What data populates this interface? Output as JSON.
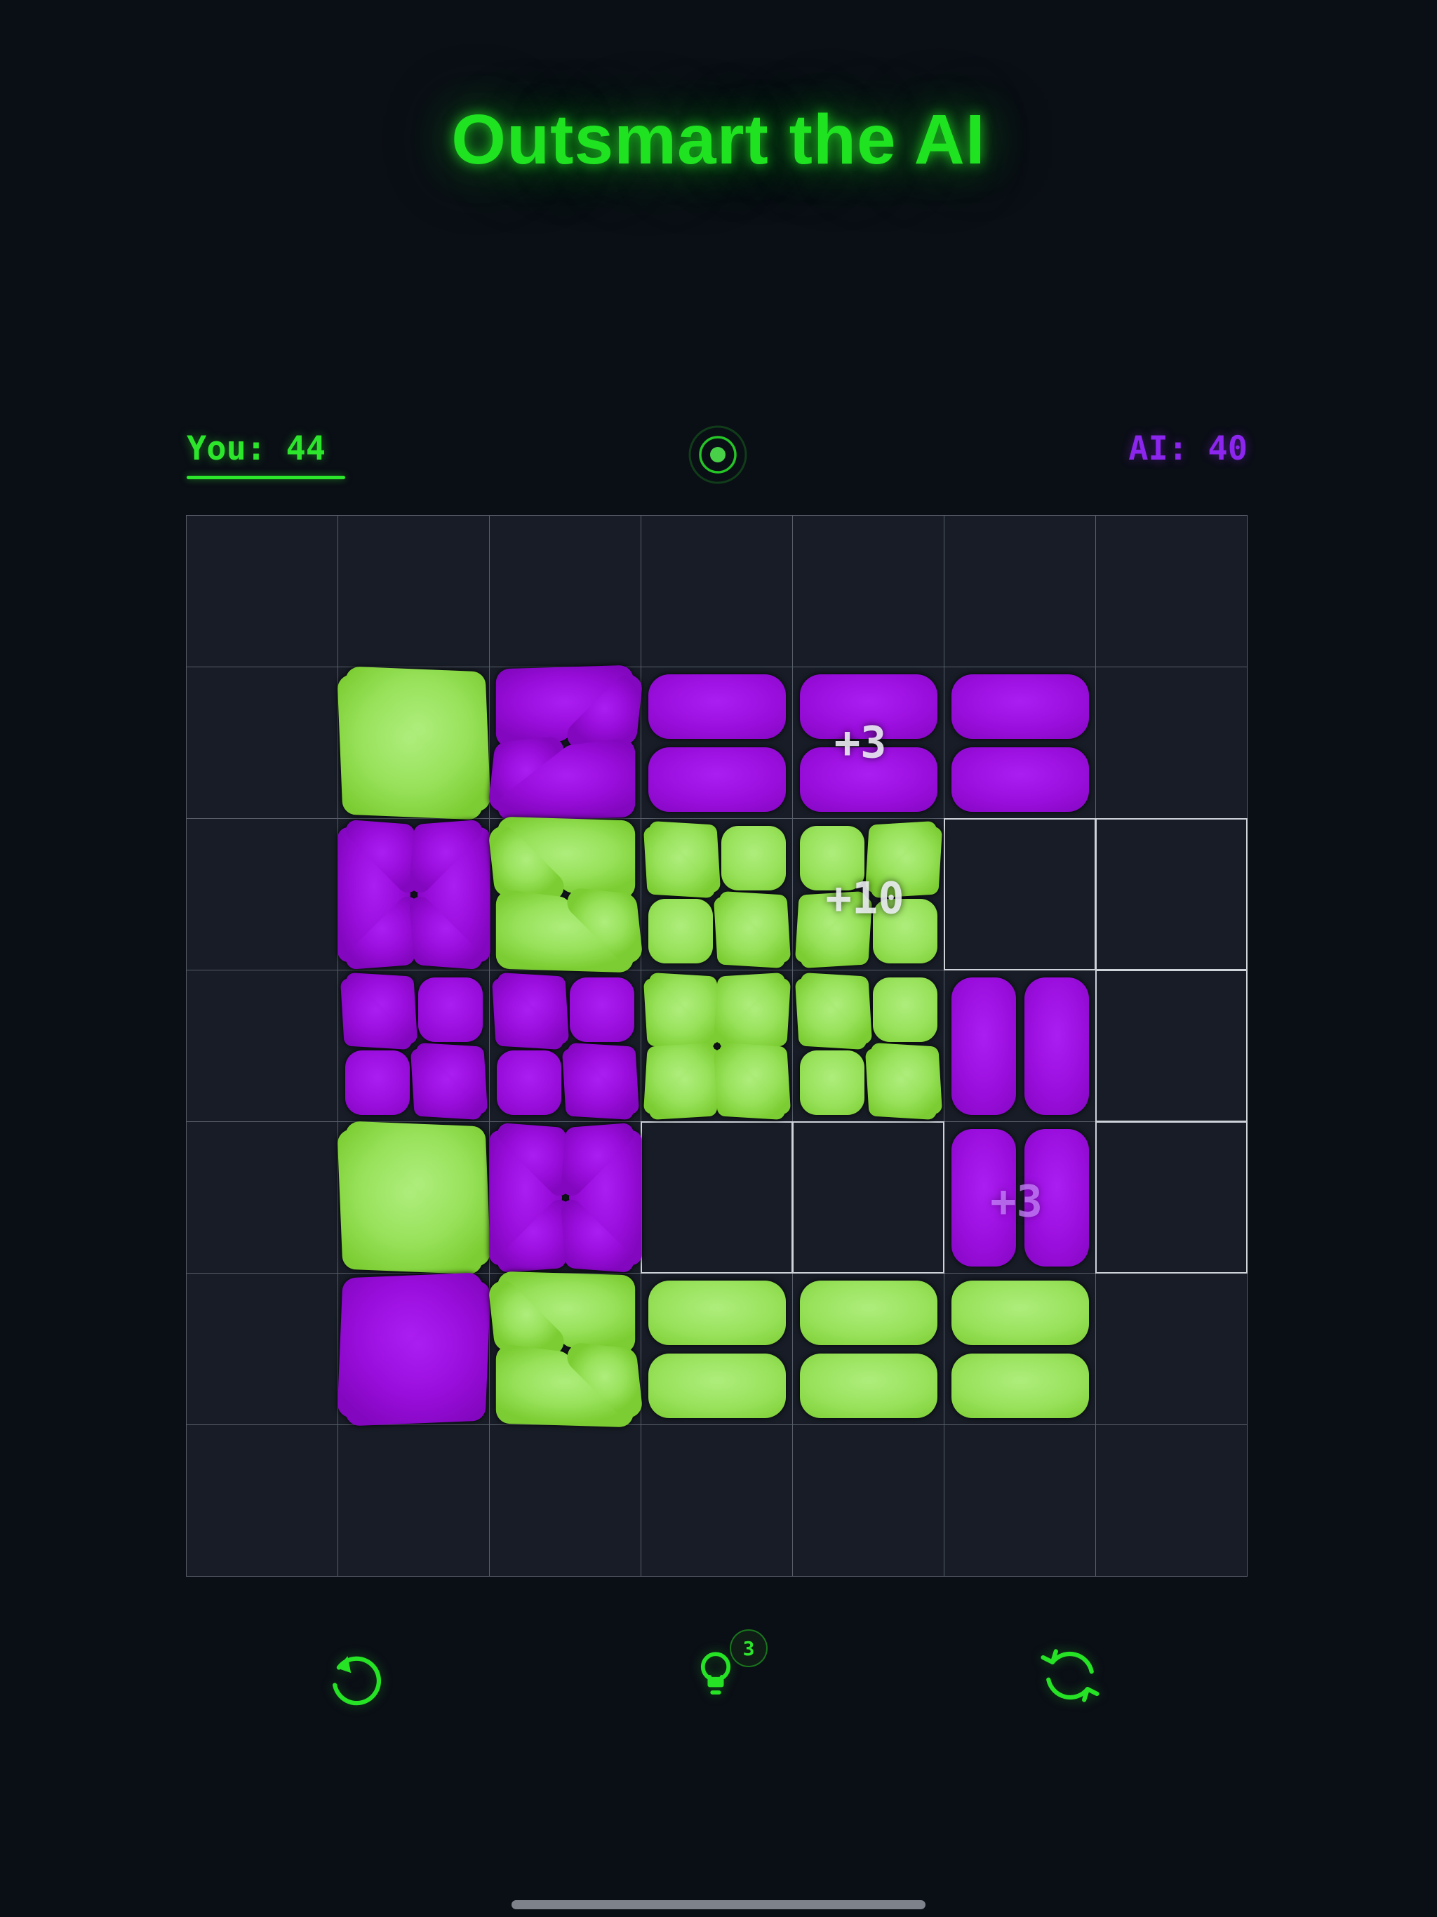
{
  "title": {
    "text": "Outsmart the AI"
  },
  "scoreboard": {
    "you": "You: 44",
    "ai": "AI: 40",
    "turn_icon": "active-turn-indicator"
  },
  "colors": {
    "player_green": "#2ce62c",
    "ai_purple": "#8c25ee",
    "tile_green": "#98e25b",
    "tile_purple": "#9a0edd",
    "title_green": "#1fe321"
  },
  "board": {
    "rows": 7,
    "cols": 7,
    "highlighted_empty_cells": [
      [
        2,
        5
      ],
      [
        2,
        6
      ],
      [
        3,
        6
      ],
      [
        4,
        3
      ],
      [
        4,
        4
      ],
      [
        4,
        6
      ]
    ],
    "tiles": [
      {
        "r": 1,
        "c": 1,
        "color": "green",
        "type": "diag-backslash"
      },
      {
        "r": 1,
        "c": 2,
        "color": "purple",
        "type": "split-slash"
      },
      {
        "r": 1,
        "c": 3,
        "color": "purple",
        "type": "h-pills"
      },
      {
        "r": 1,
        "c": 4,
        "color": "purple",
        "type": "h-pills"
      },
      {
        "r": 1,
        "c": 5,
        "color": "purple",
        "type": "h-pills"
      },
      {
        "r": 2,
        "c": 1,
        "color": "purple",
        "type": "petals"
      },
      {
        "r": 2,
        "c": 2,
        "color": "green",
        "type": "split-backslash"
      },
      {
        "r": 2,
        "c": 3,
        "color": "green",
        "type": "checker-diag"
      },
      {
        "r": 2,
        "c": 4,
        "color": "green",
        "type": "checker-diag-alt"
      },
      {
        "r": 3,
        "c": 1,
        "color": "purple",
        "type": "checker-diag"
      },
      {
        "r": 3,
        "c": 2,
        "color": "purple",
        "type": "checker-diag"
      },
      {
        "r": 3,
        "c": 3,
        "color": "green",
        "type": "flower"
      },
      {
        "r": 3,
        "c": 4,
        "color": "green",
        "type": "checker-diag"
      },
      {
        "r": 3,
        "c": 5,
        "color": "purple",
        "type": "v-pills"
      },
      {
        "r": 4,
        "c": 1,
        "color": "green",
        "type": "diag-backslash"
      },
      {
        "r": 4,
        "c": 2,
        "color": "purple",
        "type": "petals"
      },
      {
        "r": 4,
        "c": 5,
        "color": "purple",
        "type": "v-pills"
      },
      {
        "r": 5,
        "c": 1,
        "color": "purple",
        "type": "diag-slash"
      },
      {
        "r": 5,
        "c": 2,
        "color": "green",
        "type": "split-backslash"
      },
      {
        "r": 5,
        "c": 3,
        "color": "green",
        "type": "h-pills"
      },
      {
        "r": 5,
        "c": 4,
        "color": "green",
        "type": "h-pills"
      },
      {
        "r": 5,
        "c": 5,
        "color": "green",
        "type": "h-pills"
      }
    ],
    "score_popups": [
      {
        "text": "+3",
        "style": "white",
        "r": 1,
        "c": 4,
        "dx": 0.45,
        "dy": 0.5
      },
      {
        "text": "+10",
        "style": "white",
        "r": 2,
        "c": 4,
        "dx": 0.48,
        "dy": 0.53
      },
      {
        "text": "+3",
        "style": "purple",
        "r": 4,
        "c": 5,
        "dx": 0.48,
        "dy": 0.53
      }
    ]
  },
  "controls": {
    "undo_icon": "undo-arrow",
    "hint_icon": "lightbulb",
    "hint_count": "3",
    "restart_icon": "restart-arrows"
  }
}
